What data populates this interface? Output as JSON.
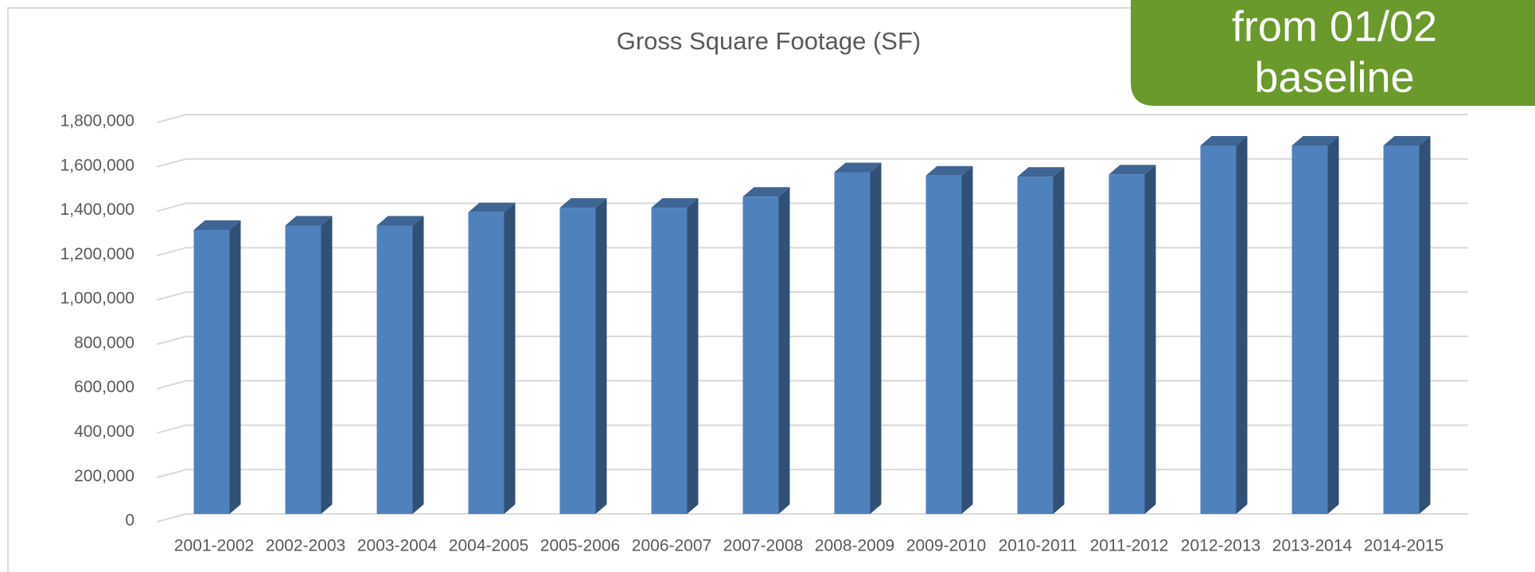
{
  "chart_data": {
    "type": "bar3d",
    "title": "Gross Square Footage (SF)",
    "annotations": [
      "from 01/02",
      "baseline"
    ],
    "categories": [
      "2001-2002",
      "2002-2003",
      "2003-2004",
      "2004-2005",
      "2005-2006",
      "2006-2007",
      "2007-2008",
      "2008-2009",
      "2009-2010",
      "2010-2011",
      "2011-2012",
      "2012-2013",
      "2013-2014",
      "2014-2015"
    ],
    "values": [
      1280000,
      1300000,
      1300000,
      1360000,
      1380000,
      1380000,
      1430000,
      1540000,
      1525000,
      1520000,
      1530000,
      1660000,
      1660000,
      1660000
    ],
    "color": "#4f81bd",
    "ylim": [
      0,
      1800000
    ],
    "yticks": [
      0,
      {
        "value": 200000,
        "label": "200,000"
      },
      {
        "value": 400000,
        "label": "400,000"
      },
      {
        "value": 600000,
        "label": "600,000"
      },
      {
        "value": 800000,
        "label": "800,000"
      },
      {
        "value": 1000000,
        "label": "1,000,000"
      },
      {
        "value": 1200000,
        "label": "1,200,000"
      },
      {
        "value": 1400000,
        "label": "1,400,000"
      },
      {
        "value": 1600000,
        "label": "1,600,000"
      },
      {
        "value": 1800000,
        "label": "1,800,000"
      }
    ],
    "grid": true
  }
}
